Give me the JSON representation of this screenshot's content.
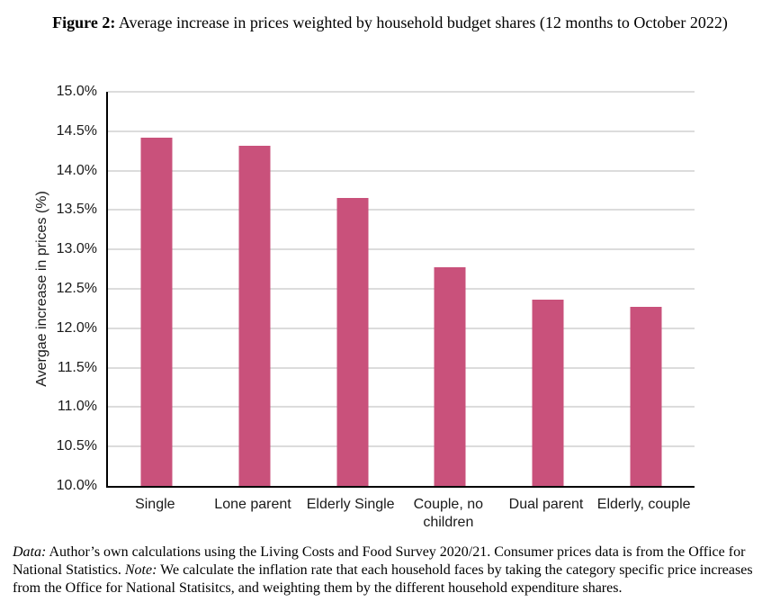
{
  "page": {
    "background": "#ffffff"
  },
  "figure_title": {
    "label": "Figure 2:",
    "text": "Average increase in prices weighted by household budget shares (12 months to October 2022)"
  },
  "chart_data": {
    "type": "bar",
    "categories": [
      "Single",
      "Lone parent",
      "Elderly Single",
      "Couple, no children",
      "Dual parent",
      "Elderly, couple"
    ],
    "values": [
      14.42,
      14.31,
      13.65,
      12.77,
      12.36,
      12.27
    ],
    "title": "",
    "xlabel": "",
    "ylabel": "Avergae increase in prices (%)",
    "ylim": [
      10.0,
      15.0
    ],
    "ytick_step": 0.5,
    "ytick_labels": [
      "15.0%",
      "14.5%",
      "14.0%",
      "13.5%",
      "13.0%",
      "12.5%",
      "12.0%",
      "11.5%",
      "11.0%",
      "10.5%",
      "10.0%"
    ],
    "grid": "horizontal",
    "legend": "none",
    "colors": {
      "bar": "#c9517b",
      "gridline": "#dcdcdc",
      "axis": "#000000",
      "text": "#1a1a1a"
    }
  },
  "footnote": {
    "data_label": "Data:",
    "data_text": "Author’s own calculations using the Living Costs and Food Survey 2020/21. Consumer prices data is from the Office for National Statistics.",
    "note_label": "Note:",
    "note_text": "We calculate the inflation rate that each household faces by taking the category specific price increases from the Office for National Statisitcs, and weighting them by the different household expenditure shares."
  }
}
